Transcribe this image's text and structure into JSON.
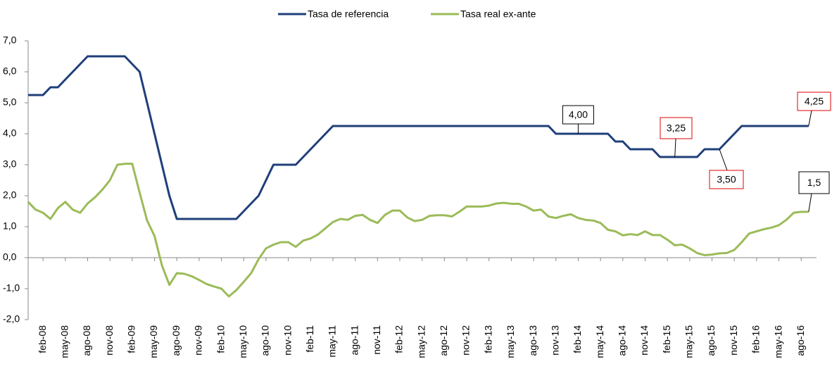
{
  "chart_data": {
    "type": "line",
    "categories": [
      null,
      null,
      "feb-08",
      null,
      null,
      "may-08",
      null,
      null,
      "ago-08",
      null,
      null,
      "nov-08",
      null,
      null,
      "feb-09",
      null,
      null,
      "may-09",
      null,
      null,
      "ago-09",
      null,
      null,
      "nov-09",
      null,
      null,
      "feb-10",
      null,
      null,
      "may-10",
      null,
      null,
      "ago-10",
      null,
      null,
      "nov-10",
      null,
      null,
      "feb-11",
      null,
      null,
      "may-11",
      null,
      null,
      "ago-11",
      null,
      null,
      "nov-11",
      null,
      null,
      "feb-12",
      null,
      null,
      "may-12",
      null,
      null,
      "ago-12",
      null,
      null,
      "nov-12",
      null,
      null,
      "feb-13",
      null,
      null,
      "may-13",
      null,
      null,
      "ago-13",
      null,
      null,
      "nov-13",
      null,
      null,
      "feb-14",
      null,
      null,
      "may-14",
      null,
      null,
      "ago-14",
      null,
      null,
      "nov-14",
      null,
      null,
      "feb-15",
      null,
      null,
      "may-15",
      null,
      null,
      "ago-15",
      null,
      null,
      "nov-15",
      null,
      null,
      "feb-16",
      null,
      null,
      "may-16",
      null,
      null,
      "ago-16",
      null
    ],
    "series": [
      {
        "name": "Tasa de referencia",
        "color": "#1f3f7a",
        "values": [
          5.25,
          5.25,
          5.25,
          5.5,
          5.5,
          5.75,
          6.0,
          6.25,
          6.5,
          6.5,
          6.5,
          6.5,
          6.5,
          6.5,
          6.25,
          6.0,
          5.0,
          4.0,
          3.0,
          2.0,
          1.25,
          1.25,
          1.25,
          1.25,
          1.25,
          1.25,
          1.25,
          1.25,
          1.25,
          1.5,
          1.75,
          2.0,
          2.5,
          3.0,
          3.0,
          3.0,
          3.0,
          3.25,
          3.5,
          3.75,
          4.0,
          4.25,
          4.25,
          4.25,
          4.25,
          4.25,
          4.25,
          4.25,
          4.25,
          4.25,
          4.25,
          4.25,
          4.25,
          4.25,
          4.25,
          4.25,
          4.25,
          4.25,
          4.25,
          4.25,
          4.25,
          4.25,
          4.25,
          4.25,
          4.25,
          4.25,
          4.25,
          4.25,
          4.25,
          4.25,
          4.25,
          4.0,
          4.0,
          4.0,
          4.0,
          4.0,
          4.0,
          4.0,
          4.0,
          3.75,
          3.75,
          3.5,
          3.5,
          3.5,
          3.5,
          3.25,
          3.25,
          3.25,
          3.25,
          3.25,
          3.25,
          3.5,
          3.5,
          3.5,
          3.75,
          4.0,
          4.25,
          4.25,
          4.25,
          4.25,
          4.25,
          4.25,
          4.25,
          4.25,
          4.25,
          4.25
        ],
        "value_labels": [
          null,
          null,
          null,
          null,
          null,
          null,
          null,
          null,
          null,
          null,
          null,
          null,
          null,
          null,
          null,
          null,
          null,
          null,
          null,
          null,
          null,
          null,
          null,
          null,
          null,
          null,
          null,
          null,
          null,
          null,
          null,
          null,
          null,
          null,
          null,
          null,
          null,
          null,
          null,
          null,
          null,
          null,
          null,
          null,
          null,
          null,
          null,
          null,
          null,
          null,
          null,
          null,
          null,
          null,
          null,
          null,
          null,
          null,
          null,
          null,
          null,
          null,
          null,
          null,
          null,
          null,
          null,
          null,
          null,
          null,
          null,
          null,
          null,
          null,
          "4,00",
          null,
          null,
          null,
          null,
          null,
          null,
          null,
          null,
          null,
          null,
          null,
          null,
          "3,25",
          null,
          null,
          null,
          null,
          null,
          "3,50",
          null,
          null,
          null,
          null,
          null,
          null,
          null,
          null,
          null,
          null,
          null,
          "4,25"
        ]
      },
      {
        "name": "Tasa real ex-ante",
        "color": "#9bbb59",
        "values": [
          1.8,
          1.55,
          1.45,
          1.25,
          1.6,
          1.8,
          1.55,
          1.45,
          1.75,
          1.95,
          2.2,
          2.5,
          3.0,
          3.03,
          3.03,
          2.1,
          1.2,
          0.7,
          -0.25,
          -0.88,
          -0.5,
          -0.52,
          -0.6,
          -0.72,
          -0.85,
          -0.93,
          -1.0,
          -1.25,
          -1.05,
          -0.78,
          -0.5,
          -0.05,
          0.3,
          0.42,
          0.5,
          0.5,
          0.35,
          0.55,
          0.62,
          0.75,
          0.95,
          1.15,
          1.25,
          1.22,
          1.35,
          1.38,
          1.22,
          1.12,
          1.38,
          1.52,
          1.52,
          1.3,
          1.18,
          1.22,
          1.35,
          1.37,
          1.37,
          1.33,
          1.48,
          1.65,
          1.65,
          1.65,
          1.68,
          1.75,
          1.77,
          1.74,
          1.74,
          1.65,
          1.52,
          1.55,
          1.33,
          1.28,
          1.35,
          1.4,
          1.28,
          1.22,
          1.2,
          1.12,
          0.9,
          0.85,
          0.72,
          0.76,
          0.73,
          0.85,
          0.73,
          0.73,
          0.58,
          0.4,
          0.42,
          0.3,
          0.15,
          0.08,
          0.1,
          0.14,
          0.15,
          0.25,
          0.5,
          0.78,
          0.85,
          0.92,
          0.97,
          1.05,
          1.22,
          1.45,
          1.48,
          1.48
        ],
        "value_labels": [
          null,
          null,
          null,
          null,
          null,
          null,
          null,
          null,
          null,
          null,
          null,
          null,
          null,
          null,
          null,
          null,
          null,
          null,
          null,
          null,
          null,
          null,
          null,
          null,
          null,
          null,
          null,
          null,
          null,
          null,
          null,
          null,
          null,
          null,
          null,
          null,
          null,
          null,
          null,
          null,
          null,
          null,
          null,
          null,
          null,
          null,
          null,
          null,
          null,
          null,
          null,
          null,
          null,
          null,
          null,
          null,
          null,
          null,
          null,
          null,
          null,
          null,
          null,
          null,
          null,
          null,
          null,
          null,
          null,
          null,
          null,
          null,
          null,
          null,
          null,
          null,
          null,
          null,
          null,
          null,
          null,
          null,
          null,
          null,
          null,
          null,
          null,
          null,
          null,
          null,
          null,
          null,
          null,
          null,
          null,
          null,
          null,
          null,
          null,
          null,
          null,
          null,
          null,
          null,
          null,
          "1,5"
        ]
      }
    ],
    "ylim": [
      -2,
      7
    ],
    "yticks": [
      {
        "value": -2,
        "label": "-2,0"
      },
      {
        "value": -1,
        "label": "-1,0"
      },
      {
        "value": 0,
        "label": "0,0"
      },
      {
        "value": 1,
        "label": "1,0"
      },
      {
        "value": 2,
        "label": "2,0"
      },
      {
        "value": 3,
        "label": "3,0"
      },
      {
        "value": 4,
        "label": "4,0"
      },
      {
        "value": 5,
        "label": "5,0"
      },
      {
        "value": 6,
        "label": "6,0"
      },
      {
        "value": 7,
        "label": "7,0"
      }
    ],
    "legend": "top"
  }
}
